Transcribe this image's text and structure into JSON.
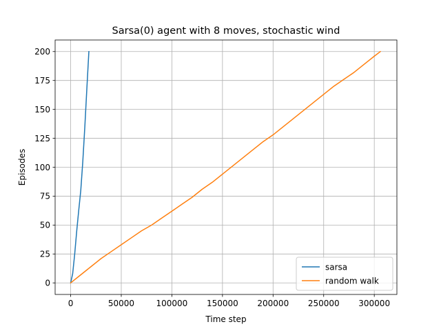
{
  "chart_data": {
    "type": "line",
    "title": "Sarsa(0) agent with 8 moves, stochastic wind",
    "xlabel": "Time step",
    "ylabel": "Episodes",
    "xlim": [
      -15350,
      322350
    ],
    "ylim": [
      -10,
      210
    ],
    "xticks": [
      0,
      50000,
      100000,
      150000,
      200000,
      250000,
      300000
    ],
    "xtick_labels": [
      "0",
      "50000",
      "100000",
      "150000",
      "200000",
      "250000",
      "300000"
    ],
    "yticks": [
      0,
      25,
      50,
      75,
      100,
      125,
      150,
      175,
      200
    ],
    "ytick_labels": [
      "0",
      "25",
      "50",
      "75",
      "100",
      "125",
      "150",
      "175",
      "200"
    ],
    "grid": true,
    "legend_position": "lower-right",
    "series": [
      {
        "name": "sarsa",
        "color": "#1f77b4",
        "x": [
          0,
          2000,
          4000,
          6000,
          8000,
          10000,
          12000,
          14000,
          16000,
          18000
        ],
        "y": [
          0,
          8,
          25,
          45,
          63,
          80,
          105,
          135,
          168,
          200
        ]
      },
      {
        "name": "random walk",
        "color": "#ff7f0e",
        "x": [
          0,
          10000,
          20000,
          30000,
          40000,
          50000,
          60000,
          70000,
          80000,
          90000,
          100000,
          110000,
          120000,
          130000,
          140000,
          150000,
          160000,
          170000,
          180000,
          190000,
          200000,
          210000,
          220000,
          230000,
          240000,
          250000,
          260000,
          270000,
          280000,
          290000,
          300000,
          306000
        ],
        "y": [
          0,
          7,
          14,
          21,
          27,
          33,
          39,
          45,
          50,
          56,
          62,
          68,
          74,
          81,
          87,
          94,
          101,
          108,
          115,
          122,
          128,
          135,
          142,
          149,
          156,
          163,
          170,
          176,
          182,
          189,
          196,
          200
        ]
      }
    ]
  }
}
